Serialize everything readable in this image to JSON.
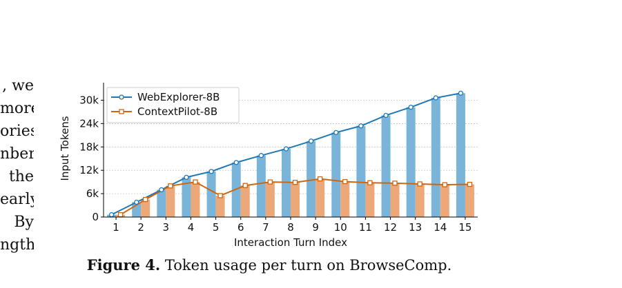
{
  "side_text": [
    ", we",
    "more",
    "ories",
    "nber",
    "the",
    "early",
    "By",
    "ngth"
  ],
  "caption": {
    "label": "Figure 4.",
    "text": "Token usage per turn on BrowseComp."
  },
  "colors": {
    "webexplorer": "#1f77b4",
    "webexplorer_bar": "#7ab4d9",
    "contextpilot": "#cc6611",
    "contextpilot_bar": "#eda87a"
  },
  "chart_data": {
    "type": "bar",
    "categories": [
      "1",
      "2",
      "3",
      "4",
      "5",
      "6",
      "7",
      "8",
      "9",
      "10",
      "11",
      "12",
      "13",
      "14",
      "15"
    ],
    "xlabel": "Interaction Turn Index",
    "ylabel": "Input Tokens",
    "ylim": [
      0,
      34500
    ],
    "yticks": [
      0,
      6000,
      12000,
      18000,
      24000,
      30000
    ],
    "ytick_labels": [
      "0",
      "6k",
      "12k",
      "18k",
      "24k",
      "30k"
    ],
    "grid": true,
    "legend_position": "top-left",
    "series": [
      {
        "name": "WebExplorer-8B",
        "values": [
          600,
          3800,
          7000,
          10200,
          11700,
          14000,
          15800,
          17500,
          19500,
          21700,
          23400,
          26100,
          28200,
          30600,
          31800
        ]
      },
      {
        "name": "ContextPilot-8B",
        "values": [
          600,
          4500,
          8000,
          9000,
          5500,
          8100,
          9000,
          8900,
          9800,
          9100,
          8800,
          8700,
          8500,
          8300,
          8400
        ]
      }
    ]
  }
}
